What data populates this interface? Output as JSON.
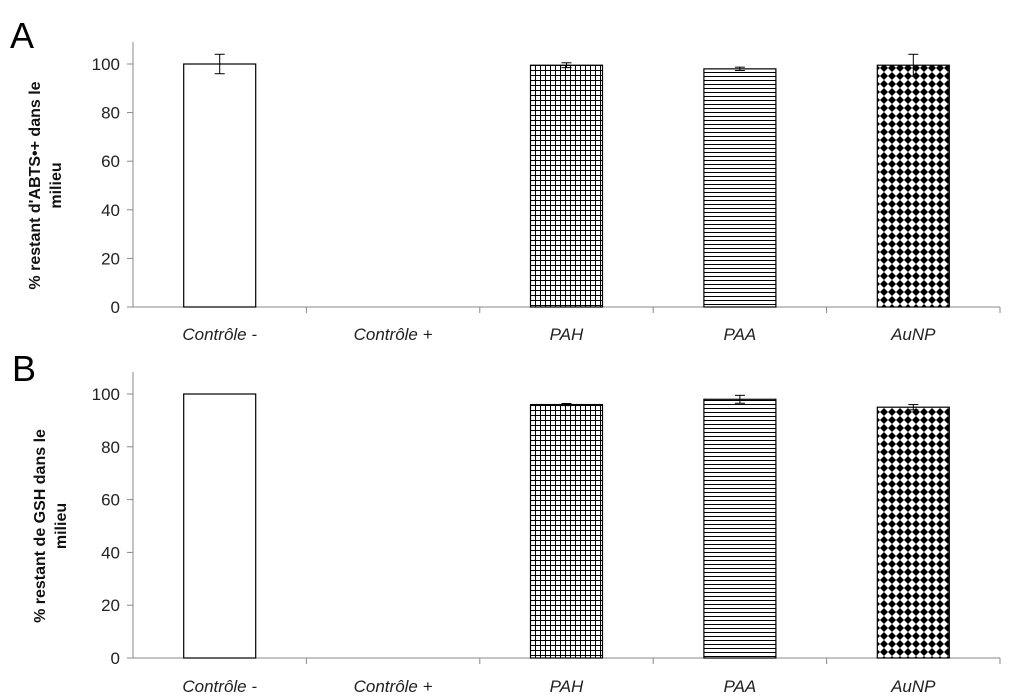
{
  "chart_data": [
    {
      "type": "bar",
      "panel_label": "A",
      "ylabel_lines": [
        "% restant d'ABTS•+ dans le",
        "milieu"
      ],
      "categories": [
        "Contrôle -",
        "Contrôle +",
        "PAH",
        "PAA",
        "AuNP"
      ],
      "values": [
        100,
        0,
        99.5,
        98,
        99.5
      ],
      "errors": [
        4,
        0,
        1,
        0.7,
        4.5
      ],
      "fills": [
        "plain",
        "none",
        "grid",
        "hlines",
        "diamond"
      ],
      "ylim": [
        0,
        100
      ],
      "yticks": [
        0,
        20,
        40,
        60,
        80,
        100
      ],
      "grid": false,
      "legend": "none"
    },
    {
      "type": "bar",
      "panel_label": "B",
      "ylabel_lines": [
        "% restant de GSH dans le",
        "milieu"
      ],
      "categories": [
        "Contrôle -",
        "Contrôle +",
        "PAH",
        "PAA",
        "AuNP"
      ],
      "values": [
        100,
        0,
        96,
        98,
        95
      ],
      "errors": [
        0,
        0,
        0.4,
        1.5,
        1
      ],
      "fills": [
        "plain",
        "none",
        "grid",
        "hlines",
        "diamond"
      ],
      "ylim": [
        0,
        100
      ],
      "yticks": [
        0,
        20,
        40,
        60,
        80,
        100
      ],
      "grid": false,
      "legend": "none"
    }
  ]
}
